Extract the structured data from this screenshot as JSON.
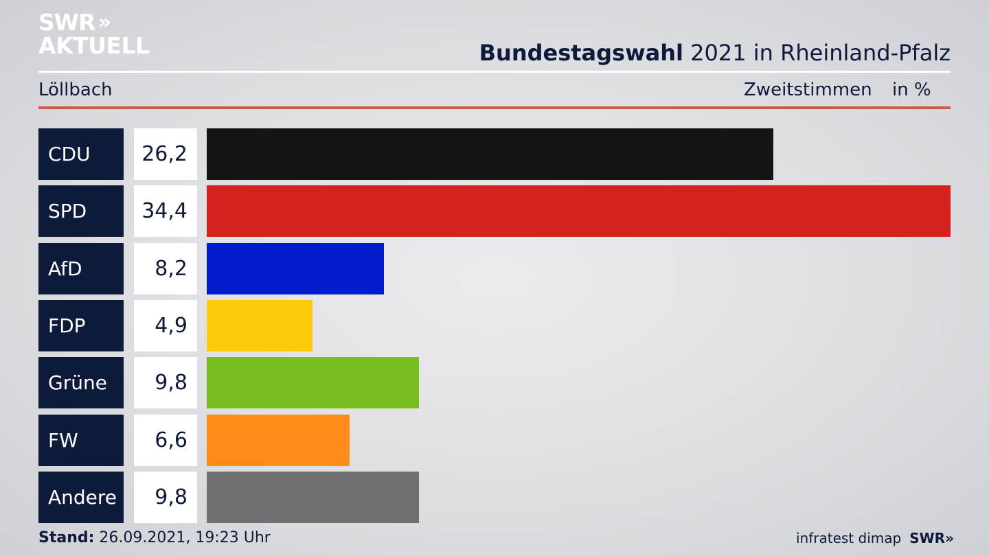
{
  "logo": {
    "line1": "SWR",
    "chevrons": "»",
    "line2": "AKTUELL"
  },
  "header": {
    "title_bold": "Bundestagswahl",
    "title_rest": " 2021 in Rheinland-Pfalz"
  },
  "subheader": {
    "location": "Löllbach",
    "measure": "Zweitstimmen",
    "unit": "in %"
  },
  "footer": {
    "stand_label": "Stand:",
    "stand_value": " 26.09.2021, 19:23 Uhr",
    "source": "infratest dimap",
    "brand": "SWR",
    "brand_chevrons": "»"
  },
  "colors": {
    "accent_red_rule": "#d0554a",
    "label_bg": "#0e1a3a"
  },
  "chart_data": {
    "type": "bar",
    "orientation": "horizontal",
    "categories": [
      "CDU",
      "SPD",
      "AfD",
      "FDP",
      "Grüne",
      "FW",
      "Andere"
    ],
    "value_labels": [
      "26,2",
      "34,4",
      "8,2",
      "4,9",
      "9,8",
      "6,6",
      "9,8"
    ],
    "values": [
      26.2,
      34.4,
      8.2,
      4.9,
      9.8,
      6.6,
      9.8
    ],
    "colors": [
      "#141414",
      "#d62121",
      "#001ccb",
      "#fdcb0c",
      "#78bd1e",
      "#ff8c18",
      "#707072"
    ],
    "unit": "%"
  }
}
